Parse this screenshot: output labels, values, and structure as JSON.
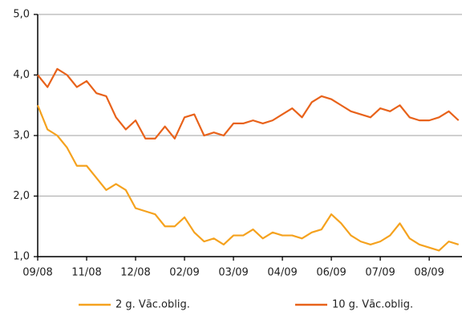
{
  "chart_data": {
    "type": "line",
    "x": [
      0,
      0.2,
      0.4,
      0.6,
      0.8,
      1.0,
      1.2,
      1.4,
      1.6,
      1.8,
      2.0,
      2.2,
      2.4,
      2.6,
      2.8,
      3.0,
      3.2,
      3.4,
      3.6,
      3.8,
      4.0,
      4.2,
      4.4,
      4.6,
      4.8,
      5.0,
      5.2,
      5.4,
      5.6,
      5.8,
      6.0,
      6.2,
      6.4,
      6.6,
      6.8,
      7.0,
      7.2,
      7.4,
      7.6,
      7.8,
      8.0,
      8.2,
      8.4,
      8.6
    ],
    "series": [
      {
        "name": "2 g. Vāc.oblig.",
        "color": "#f5a21e",
        "values": [
          3.5,
          3.1,
          3.0,
          2.8,
          2.5,
          2.5,
          2.3,
          2.1,
          2.2,
          2.1,
          1.8,
          1.75,
          1.7,
          1.5,
          1.5,
          1.65,
          1.4,
          1.25,
          1.3,
          1.2,
          1.35,
          1.35,
          1.45,
          1.3,
          1.4,
          1.35,
          1.35,
          1.3,
          1.4,
          1.45,
          1.7,
          1.55,
          1.35,
          1.25,
          1.2,
          1.25,
          1.35,
          1.55,
          1.3,
          1.2,
          1.15,
          1.1,
          1.25,
          1.2
        ]
      },
      {
        "name": "10 g. Vāc.oblig.",
        "color": "#e8621a",
        "values": [
          4.0,
          3.8,
          4.1,
          4.0,
          3.8,
          3.9,
          3.7,
          3.65,
          3.3,
          3.1,
          3.25,
          2.95,
          2.95,
          3.15,
          2.95,
          3.3,
          3.35,
          3.0,
          3.05,
          3.0,
          3.2,
          3.2,
          3.25,
          3.2,
          3.25,
          3.35,
          3.45,
          3.3,
          3.55,
          3.65,
          3.6,
          3.5,
          3.4,
          3.35,
          3.3,
          3.45,
          3.4,
          3.5,
          3.3,
          3.25,
          3.25,
          3.3,
          3.4,
          3.25
        ]
      }
    ],
    "xlim": [
      0,
      8.67
    ],
    "xticks": [
      {
        "value": 0,
        "label": "09/08"
      },
      {
        "value": 1,
        "label": "11/08"
      },
      {
        "value": 2,
        "label": "12/08"
      },
      {
        "value": 3,
        "label": "02/09"
      },
      {
        "value": 4,
        "label": "03/09"
      },
      {
        "value": 5,
        "label": "04/09"
      },
      {
        "value": 6,
        "label": "06/09"
      },
      {
        "value": 7,
        "label": "07/09"
      },
      {
        "value": 8,
        "label": "08/09"
      }
    ],
    "ylim": [
      1,
      5
    ],
    "yticks": [
      {
        "value": 1,
        "label": "1,0"
      },
      {
        "value": 2,
        "label": "2,0"
      },
      {
        "value": 3,
        "label": "3,0"
      },
      {
        "value": 4,
        "label": "4,0"
      },
      {
        "value": 5,
        "label": "5,0"
      }
    ],
    "grid": true
  }
}
